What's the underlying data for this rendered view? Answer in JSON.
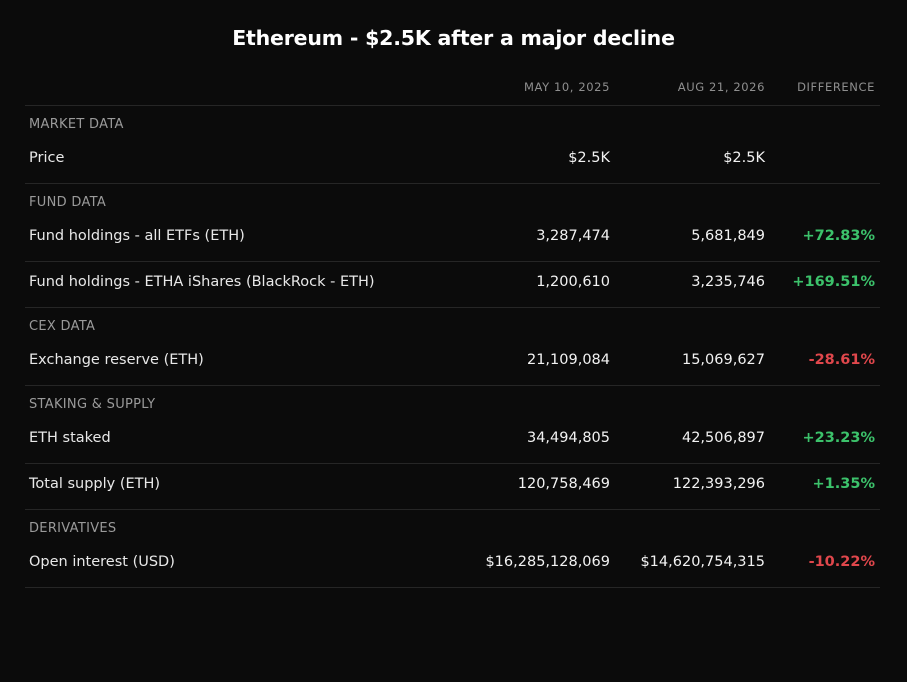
{
  "title": "Ethereum - $2.5K after a major decline",
  "columns": {
    "date1": "MAY 10, 2025",
    "date2": "AUG 21, 2026",
    "difference": "DIFFERENCE"
  },
  "sections": [
    {
      "label": "MARKET DATA",
      "rows": [
        {
          "label": "Price",
          "v1": "$2.5K",
          "v2": "$2.5K",
          "diff": ""
        }
      ]
    },
    {
      "label": "FUND DATA",
      "rows": [
        {
          "label": "Fund holdings - all ETFs (ETH)",
          "v1": "3,287,474",
          "v2": "5,681,849",
          "diff": "+72.83%"
        },
        {
          "label": "Fund holdings - ETHA iShares (BlackRock - ETH)",
          "v1": "1,200,610",
          "v2": "3,235,746",
          "diff": "+169.51%"
        }
      ]
    },
    {
      "label": "CEX DATA",
      "rows": [
        {
          "label": "Exchange reserve (ETH)",
          "v1": "21,109,084",
          "v2": "15,069,627",
          "diff": "-28.61%"
        }
      ]
    },
    {
      "label": "STAKING & SUPPLY",
      "rows": [
        {
          "label": "ETH staked",
          "v1": "34,494,805",
          "v2": "42,506,897",
          "diff": "+23.23%"
        },
        {
          "label": "Total supply (ETH)",
          "v1": "120,758,469",
          "v2": "122,393,296",
          "diff": "+1.35%"
        }
      ]
    },
    {
      "label": "DERIVATIVES",
      "rows": [
        {
          "label": "Open interest (USD)",
          "v1": "$16,285,128,069",
          "v2": "$14,620,754,315",
          "diff": "-10.22%"
        }
      ]
    }
  ],
  "colors": {
    "positive": "#3cc26b",
    "negative": "#e0474c",
    "background": "#0b0b0b"
  }
}
